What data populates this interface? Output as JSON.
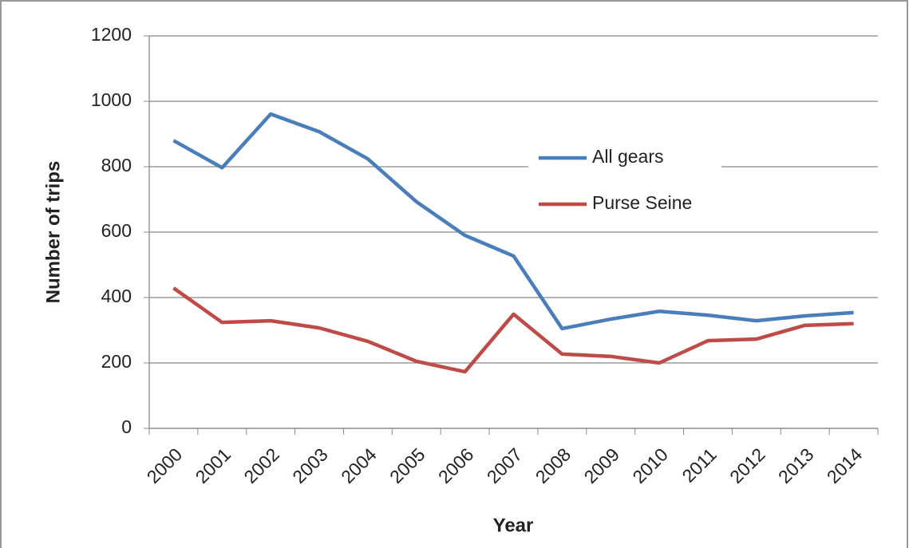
{
  "chart_data": {
    "type": "line",
    "xlabel": "Year",
    "ylabel": "Number of trips",
    "categories": [
      "2000",
      "2001",
      "2002",
      "2003",
      "2004",
      "2005",
      "2006",
      "2007",
      "2008",
      "2009",
      "2010",
      "2011",
      "2012",
      "2013",
      "2014"
    ],
    "series": [
      {
        "name": "All gears",
        "color": "#4a7ebb",
        "values": [
          880,
          797,
          961,
          907,
          824,
          693,
          590,
          527,
          305,
          334,
          358,
          346,
          329,
          344,
          354
        ]
      },
      {
        "name": "Purse Seine",
        "color": "#be4b48",
        "values": [
          429,
          324,
          329,
          307,
          266,
          205,
          173,
          349,
          227,
          220,
          200,
          268,
          273,
          315,
          320
        ]
      }
    ],
    "ylim": [
      0,
      1200
    ],
    "yticks": [
      0,
      200,
      400,
      600,
      800,
      1000,
      1200
    ],
    "grid": true
  }
}
